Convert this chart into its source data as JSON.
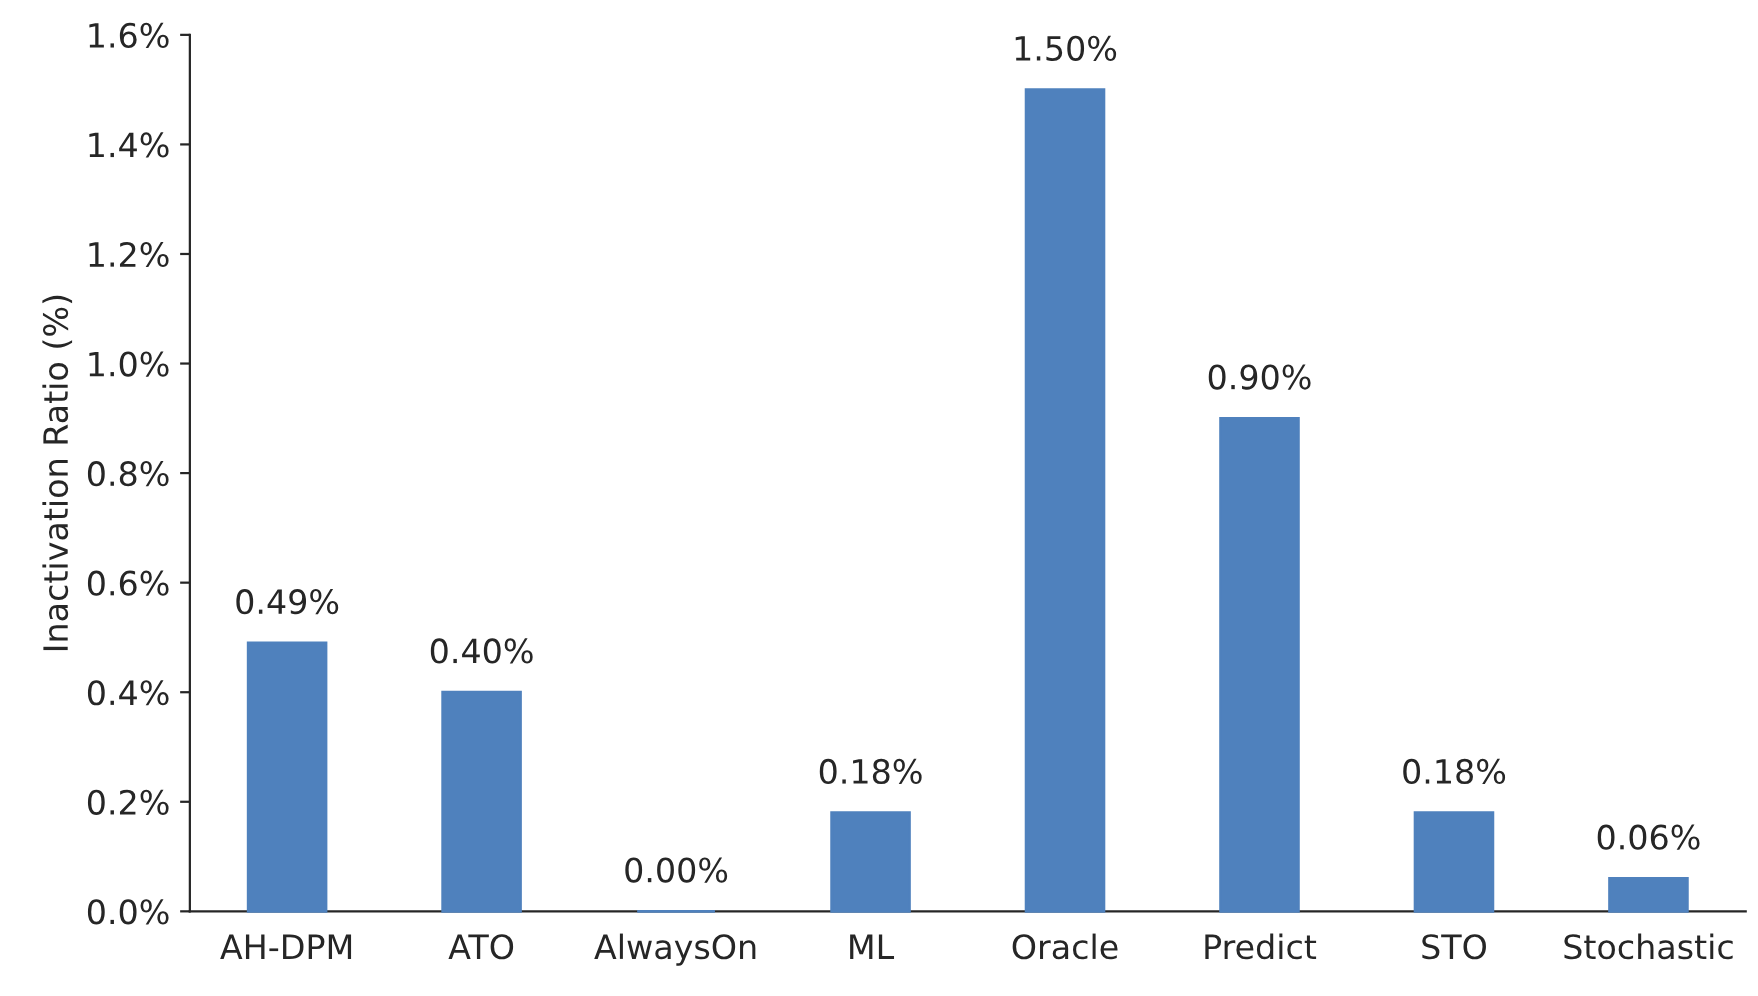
{
  "chart_data": {
    "type": "bar",
    "ylabel": "Inactivation Ratio (%)",
    "categories": [
      "AH-DPM",
      "ATO",
      "AlwaysOn",
      "ML",
      "Oracle",
      "Predict",
      "STO",
      "Stochastic"
    ],
    "values": [
      0.49,
      0.4,
      0.0,
      0.18,
      1.5,
      0.9,
      0.18,
      0.06
    ],
    "value_labels": [
      "0.49%",
      "0.40%",
      "0.00%",
      "0.18%",
      "1.50%",
      "0.90%",
      "0.18%",
      "0.06%"
    ],
    "color": "#4f81bd",
    "ylim": [
      0,
      1.6
    ],
    "yticks": [
      {
        "value": 0,
        "label": "0.0%"
      },
      {
        "value": 0.2,
        "label": "0.2%"
      },
      {
        "value": 0.4,
        "label": "0.4%"
      },
      {
        "value": 0.6,
        "label": "0.6%"
      },
      {
        "value": 0.8,
        "label": "0.8%"
      },
      {
        "value": 1.0,
        "label": "1.0%"
      },
      {
        "value": 1.2,
        "label": "1.2%"
      },
      {
        "value": 1.4,
        "label": "1.4%"
      },
      {
        "value": 1.6,
        "label": "1.6%"
      }
    ],
    "grid": false,
    "legend": false
  }
}
